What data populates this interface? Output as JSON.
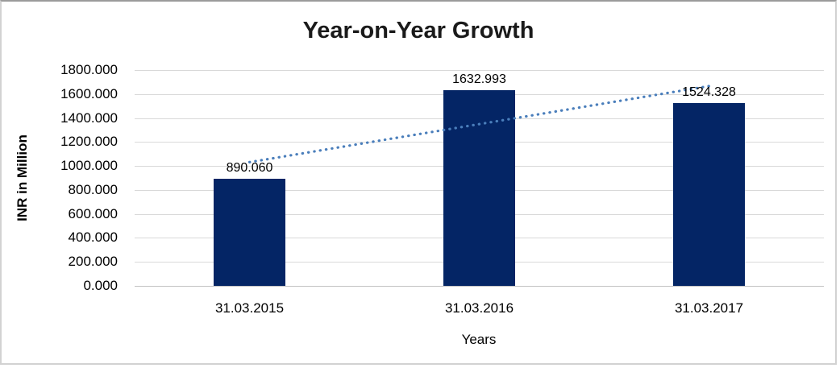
{
  "chart_data": {
    "type": "bar",
    "title": "Year-on-Year Growth",
    "categories": [
      "31.03.2015",
      "31.03.2016",
      "31.03.2017"
    ],
    "series": [
      {
        "name": "INR in Million",
        "values": [
          890.06,
          1632.993,
          1524.328
        ]
      }
    ],
    "value_labels": [
      "890.060",
      "1632.993",
      "1524.328"
    ],
    "xlabel": "Years",
    "ylabel": "INR in Million",
    "ylim": [
      0,
      1800
    ],
    "ytick_step": 200,
    "ytick_decimals": 3,
    "grid": true,
    "legend_position": "none",
    "colors": {
      "bar": "#042565",
      "trendline": "#4a7ebb",
      "gridline": "#d9d9d9",
      "title_text": "#1a1a1a",
      "axis_text": "#000000"
    },
    "trendline": {
      "type": "linear",
      "style": "dotted"
    }
  }
}
